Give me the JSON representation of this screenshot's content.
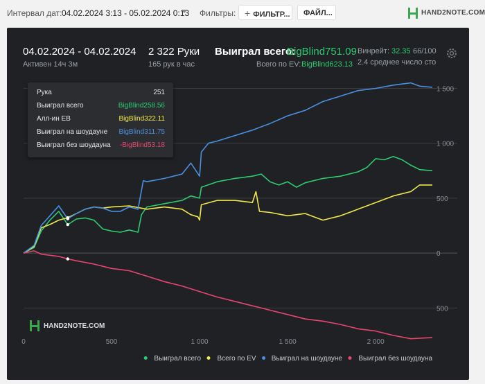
{
  "topbar": {
    "interval_label": "Интервал дат:",
    "date_range": "04.02.2024 3:13 - 05.02.2024 0:13",
    "filters_label": "Фильтры:",
    "filter_button": "ФИЛЬТР...",
    "file_button": "ФАЙЛ...",
    "logo_text": "HAND2NOTE.COM"
  },
  "summary": {
    "date": "04.02.2024 - 04.02.2024",
    "active": "Активен 14ч 3м",
    "hands": "2 322 Руки",
    "hands_per_hour": "165 рук в час",
    "won_total_label": "Выиграл всего:",
    "won_total_value": "BigBlind751.09",
    "ev_label": "Всего по EV:",
    "ev_value": "BigBlind623.13",
    "winrate_label": "Винрейт:",
    "winrate_value": "32.35",
    "winrate_suffix": "66/100",
    "avg_text": "2.4 среднее число сто"
  },
  "tooltip": {
    "rows": [
      {
        "label": "Рука",
        "value": "251",
        "color": "#e6e6e6"
      },
      {
        "label": "Выиграл всего",
        "value": "BigBlind258.56",
        "color": "#2ecc71"
      },
      {
        "label": "Алл-ин EB",
        "value": "BigBlind322.11",
        "color": "#f1e84a"
      },
      {
        "label": "Выиграл на шоудауне",
        "value": "BigBlind311.75",
        "color": "#4a90e2"
      },
      {
        "label": "Выиграл без шоудауна",
        "value": "-BigBlind53.18",
        "color": "#e8466f"
      }
    ]
  },
  "watermark": "HAND2NOTE.COM",
  "chart_data": {
    "type": "line",
    "x_range": [
      0,
      2322
    ],
    "y_range": [
      -700,
      1560
    ],
    "x_ticks": [
      {
        "value": 0,
        "label": "0"
      },
      {
        "value": 500,
        "label": "500"
      },
      {
        "value": 1000,
        "label": "1 000"
      },
      {
        "value": 1500,
        "label": "1 500"
      },
      {
        "value": 2000,
        "label": "2 000"
      }
    ],
    "y_ticks": [
      {
        "value": 1500,
        "label": "1 500"
      },
      {
        "value": 1000,
        "label": "1 000"
      },
      {
        "value": 500,
        "label": "500"
      },
      {
        "value": 0,
        "label": "0"
      },
      {
        "value": -500,
        "label": "500"
      }
    ],
    "grid": true,
    "legend_position": "bottom-right",
    "marker_x": 251,
    "series": [
      {
        "name": "Выиграл всего",
        "color": "#2ecc71",
        "points": [
          [
            0,
            0
          ],
          [
            60,
            50
          ],
          [
            100,
            200
          ],
          [
            150,
            300
          ],
          [
            200,
            380
          ],
          [
            251,
            259
          ],
          [
            300,
            310
          ],
          [
            350,
            320
          ],
          [
            400,
            300
          ],
          [
            450,
            220
          ],
          [
            500,
            200
          ],
          [
            550,
            190
          ],
          [
            600,
            210
          ],
          [
            650,
            190
          ],
          [
            670,
            350
          ],
          [
            700,
            420
          ],
          [
            800,
            450
          ],
          [
            900,
            480
          ],
          [
            950,
            520
          ],
          [
            1000,
            500
          ],
          [
            1010,
            600
          ],
          [
            1100,
            650
          ],
          [
            1200,
            680
          ],
          [
            1300,
            700
          ],
          [
            1350,
            720
          ],
          [
            1400,
            650
          ],
          [
            1450,
            620
          ],
          [
            1500,
            650
          ],
          [
            1550,
            600
          ],
          [
            1600,
            640
          ],
          [
            1700,
            680
          ],
          [
            1800,
            700
          ],
          [
            1900,
            740
          ],
          [
            1950,
            780
          ],
          [
            2000,
            860
          ],
          [
            2050,
            850
          ],
          [
            2100,
            880
          ],
          [
            2150,
            850
          ],
          [
            2200,
            800
          ],
          [
            2250,
            760
          ],
          [
            2322,
            750
          ]
        ]
      },
      {
        "name": "Всего по EV",
        "color": "#f1e84a",
        "points": [
          [
            0,
            0
          ],
          [
            60,
            60
          ],
          [
            100,
            230
          ],
          [
            150,
            260
          ],
          [
            200,
            300
          ],
          [
            251,
            322
          ],
          [
            300,
            360
          ],
          [
            350,
            400
          ],
          [
            400,
            420
          ],
          [
            450,
            410
          ],
          [
            500,
            420
          ],
          [
            600,
            430
          ],
          [
            700,
            400
          ],
          [
            800,
            420
          ],
          [
            900,
            400
          ],
          [
            950,
            350
          ],
          [
            990,
            330
          ],
          [
            1000,
            300
          ],
          [
            1010,
            440
          ],
          [
            1100,
            480
          ],
          [
            1200,
            480
          ],
          [
            1300,
            460
          ],
          [
            1320,
            560
          ],
          [
            1340,
            380
          ],
          [
            1400,
            370
          ],
          [
            1500,
            340
          ],
          [
            1600,
            360
          ],
          [
            1700,
            300
          ],
          [
            1800,
            340
          ],
          [
            1900,
            400
          ],
          [
            2000,
            460
          ],
          [
            2100,
            520
          ],
          [
            2200,
            560
          ],
          [
            2250,
            620
          ],
          [
            2322,
            620
          ]
        ]
      },
      {
        "name": "Выиграл на шоудауне",
        "color": "#4a90e2",
        "points": [
          [
            0,
            0
          ],
          [
            60,
            70
          ],
          [
            100,
            250
          ],
          [
            150,
            340
          ],
          [
            200,
            430
          ],
          [
            251,
            312
          ],
          [
            300,
            360
          ],
          [
            350,
            400
          ],
          [
            400,
            420
          ],
          [
            450,
            410
          ],
          [
            500,
            380
          ],
          [
            550,
            380
          ],
          [
            600,
            420
          ],
          [
            650,
            400
          ],
          [
            680,
            660
          ],
          [
            700,
            650
          ],
          [
            800,
            680
          ],
          [
            900,
            720
          ],
          [
            950,
            820
          ],
          [
            1000,
            700
          ],
          [
            1010,
            920
          ],
          [
            1050,
            1000
          ],
          [
            1100,
            1020
          ],
          [
            1200,
            1070
          ],
          [
            1300,
            1120
          ],
          [
            1400,
            1180
          ],
          [
            1500,
            1250
          ],
          [
            1600,
            1300
          ],
          [
            1700,
            1380
          ],
          [
            1800,
            1430
          ],
          [
            1900,
            1480
          ],
          [
            2000,
            1500
          ],
          [
            2100,
            1530
          ],
          [
            2200,
            1550
          ],
          [
            2250,
            1520
          ],
          [
            2322,
            1510
          ]
        ]
      },
      {
        "name": "Выиграл без шоудауна",
        "color": "#e8466f",
        "points": [
          [
            0,
            0
          ],
          [
            60,
            20
          ],
          [
            100,
            -10
          ],
          [
            150,
            -20
          ],
          [
            200,
            -30
          ],
          [
            251,
            -53
          ],
          [
            300,
            -70
          ],
          [
            400,
            -100
          ],
          [
            500,
            -140
          ],
          [
            600,
            -160
          ],
          [
            700,
            -210
          ],
          [
            800,
            -260
          ],
          [
            900,
            -300
          ],
          [
            1000,
            -350
          ],
          [
            1100,
            -400
          ],
          [
            1200,
            -440
          ],
          [
            1300,
            -480
          ],
          [
            1400,
            -520
          ],
          [
            1500,
            -560
          ],
          [
            1600,
            -600
          ],
          [
            1700,
            -620
          ],
          [
            1800,
            -650
          ],
          [
            1900,
            -690
          ],
          [
            2000,
            -710
          ],
          [
            2100,
            -750
          ],
          [
            2200,
            -780
          ],
          [
            2250,
            -775
          ],
          [
            2322,
            -770
          ]
        ]
      }
    ]
  }
}
